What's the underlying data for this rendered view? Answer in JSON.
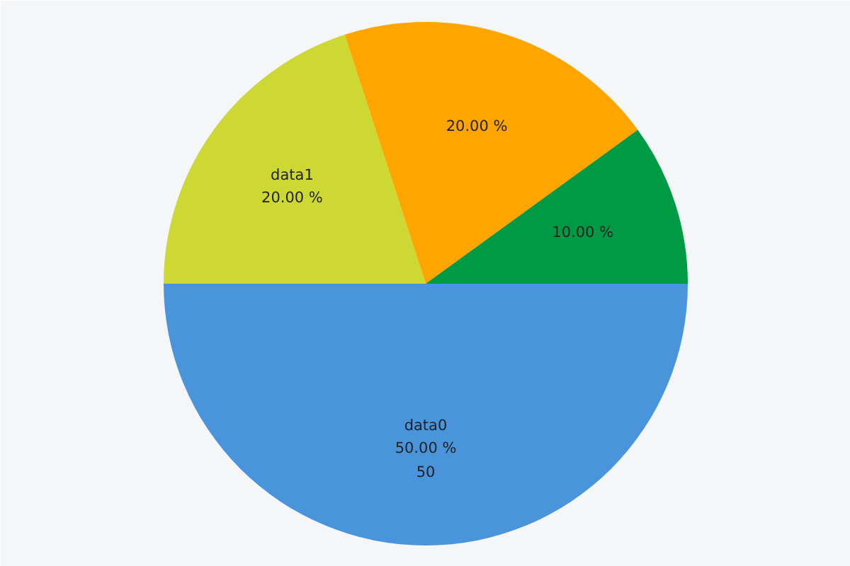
{
  "chart_data": {
    "type": "pie",
    "categories": [
      "data0",
      "data1",
      null,
      null
    ],
    "values": [
      50,
      20,
      20,
      10
    ],
    "colors": [
      "#4a94db",
      "#cdd932",
      "#ffa500",
      "#009a44"
    ],
    "value_labels": [
      "50.00 %\n50",
      "20.00 %",
      "20.00 %",
      "10.00 %"
    ],
    "legend": false
  }
}
